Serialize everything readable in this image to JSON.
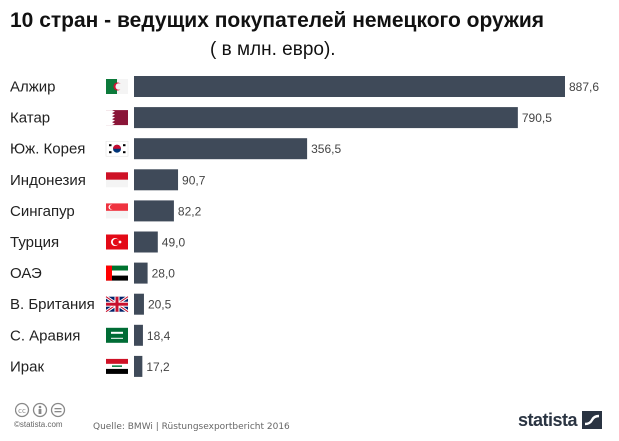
{
  "title": "10 стран - ведущих покупателей немецкого оружия",
  "subtitle": "( в млн. евро).",
  "chart_data": {
    "type": "bar",
    "orientation": "horizontal",
    "title": "10 стран - ведущих покупателей немецкого оружия",
    "subtitle": "( в млн. евро).",
    "categories": [
      "Алжир",
      "Катар",
      "Юж. Корея",
      "Индонезия",
      "Сингапур",
      "Турция",
      "ОАЭ",
      "В. Британия",
      "С. Аравия",
      "Ирак"
    ],
    "values": [
      887.6,
      790.5,
      356.5,
      90.7,
      82.2,
      49.0,
      28.0,
      20.5,
      18.4,
      17.2
    ],
    "value_labels": [
      "887,6",
      "790,5",
      "356,5",
      "90,7",
      "82,2",
      "49,0",
      "28,0",
      "20,5",
      "18,4",
      "17,2"
    ],
    "xlim": [
      0,
      887.6
    ],
    "grid": false,
    "bar_color": "#3f4a59"
  },
  "flags": [
    "algeria-flag-icon",
    "qatar-flag-icon",
    "south-korea-flag-icon",
    "indonesia-flag-icon",
    "singapore-flag-icon",
    "turkey-flag-icon",
    "uae-flag-icon",
    "uk-flag-icon",
    "saudi-arabia-flag-icon",
    "iraq-flag-icon"
  ],
  "footer": {
    "credit": "©statista.com",
    "source": "Quelle: BMWi | Rüstungsexportbericht 2016",
    "brand": "statista"
  }
}
